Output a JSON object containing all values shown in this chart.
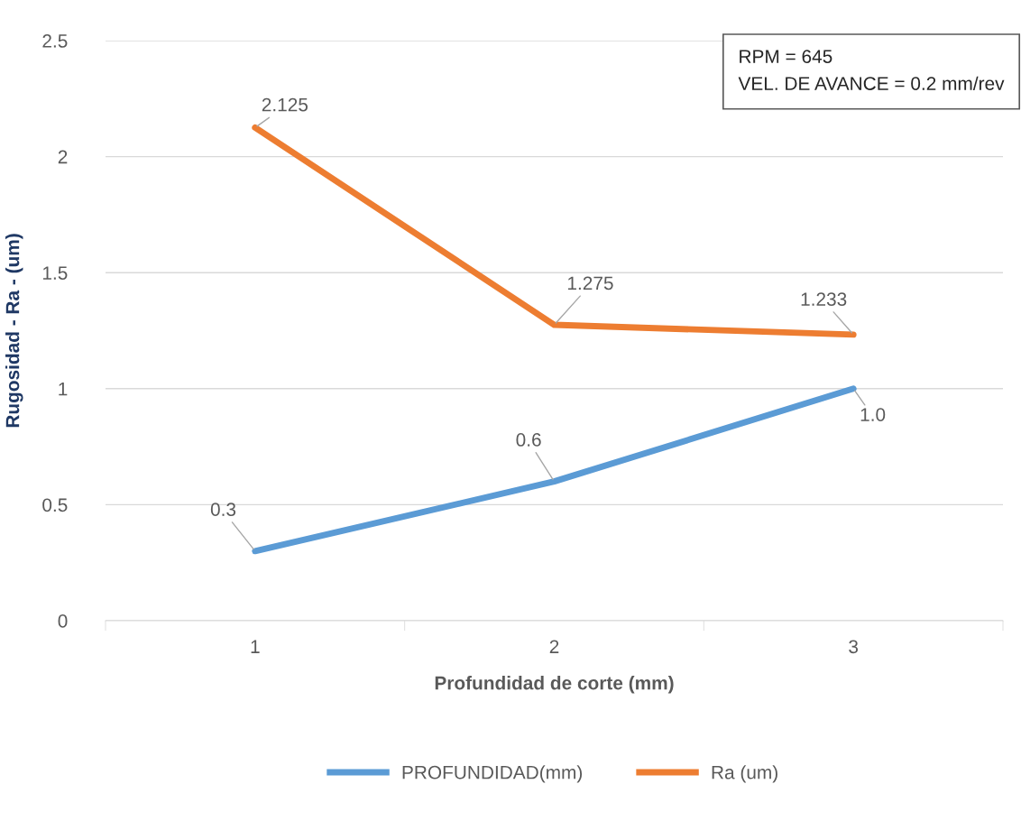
{
  "chart_data": {
    "type": "line",
    "xlabel": "Profundidad de corte (mm)",
    "ylabel": "Rugosidad - Ra - (um)",
    "categories": [
      "1",
      "2",
      "3"
    ],
    "series": [
      {
        "name": "PROFUNDIDAD(mm)",
        "color": "#5b9bd5",
        "values": [
          0.3,
          0.6,
          1.0
        ],
        "value_labels": [
          "0.3",
          "0.6",
          "1.0"
        ]
      },
      {
        "name": "Ra (um)",
        "color": "#ed7d31",
        "values": [
          2.125,
          1.275,
          1.233
        ],
        "value_labels": [
          "2.125",
          "1.275",
          "1.233"
        ]
      }
    ],
    "ylim": [
      0,
      2.5
    ],
    "yticks": [
      0,
      0.5,
      1,
      1.5,
      2,
      2.5
    ],
    "grid": "y",
    "legend": "bottom",
    "marker": "none",
    "line_style": "solid",
    "annotations": [
      "RPM = 645",
      "VEL. DE AVANCE = 0.2 mm/rev"
    ]
  }
}
